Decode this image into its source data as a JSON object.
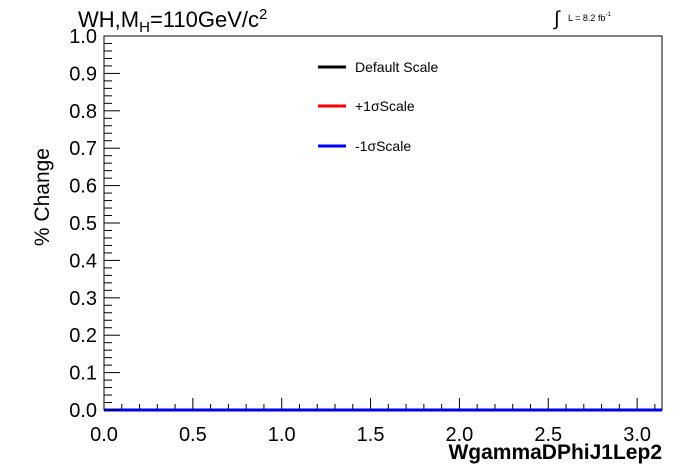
{
  "title": {
    "main_prefix": "WH,M",
    "subscript": "H",
    "main_suffix": "=110GeV/c",
    "superscript": "2"
  },
  "luminosity": {
    "symbol": "∫",
    "text": "L = 8.2 fb",
    "superscript": "-1"
  },
  "chart_data": {
    "type": "line",
    "xlabel": "WgammaDPhiJ1Lep2",
    "ylabel": "% Change",
    "xlim": [
      0.0,
      3.14
    ],
    "ylim": [
      0.0,
      1.0
    ],
    "x_ticks": [
      "0.0",
      "0.5",
      "1.0",
      "1.5",
      "2.0",
      "2.5",
      "3.0"
    ],
    "y_ticks": [
      "0.0",
      "0.1",
      "0.2",
      "0.3",
      "0.4",
      "0.5",
      "0.6",
      "0.7",
      "0.8",
      "0.9",
      "1.0"
    ],
    "grid": false,
    "legend_position": "top-center",
    "series": [
      {
        "name": "Default Scale",
        "color": "#000000",
        "x": [
          0.0,
          3.14
        ],
        "y": [
          0.0,
          0.0
        ]
      },
      {
        "name": "+1σScale",
        "color": "#ff0000",
        "x": [
          0.0,
          3.14
        ],
        "y": [
          0.0,
          0.0
        ]
      },
      {
        "name": "-1σScale",
        "color": "#0000ff",
        "x": [
          0.0,
          3.14
        ],
        "y": [
          0.0,
          0.0
        ]
      }
    ]
  }
}
